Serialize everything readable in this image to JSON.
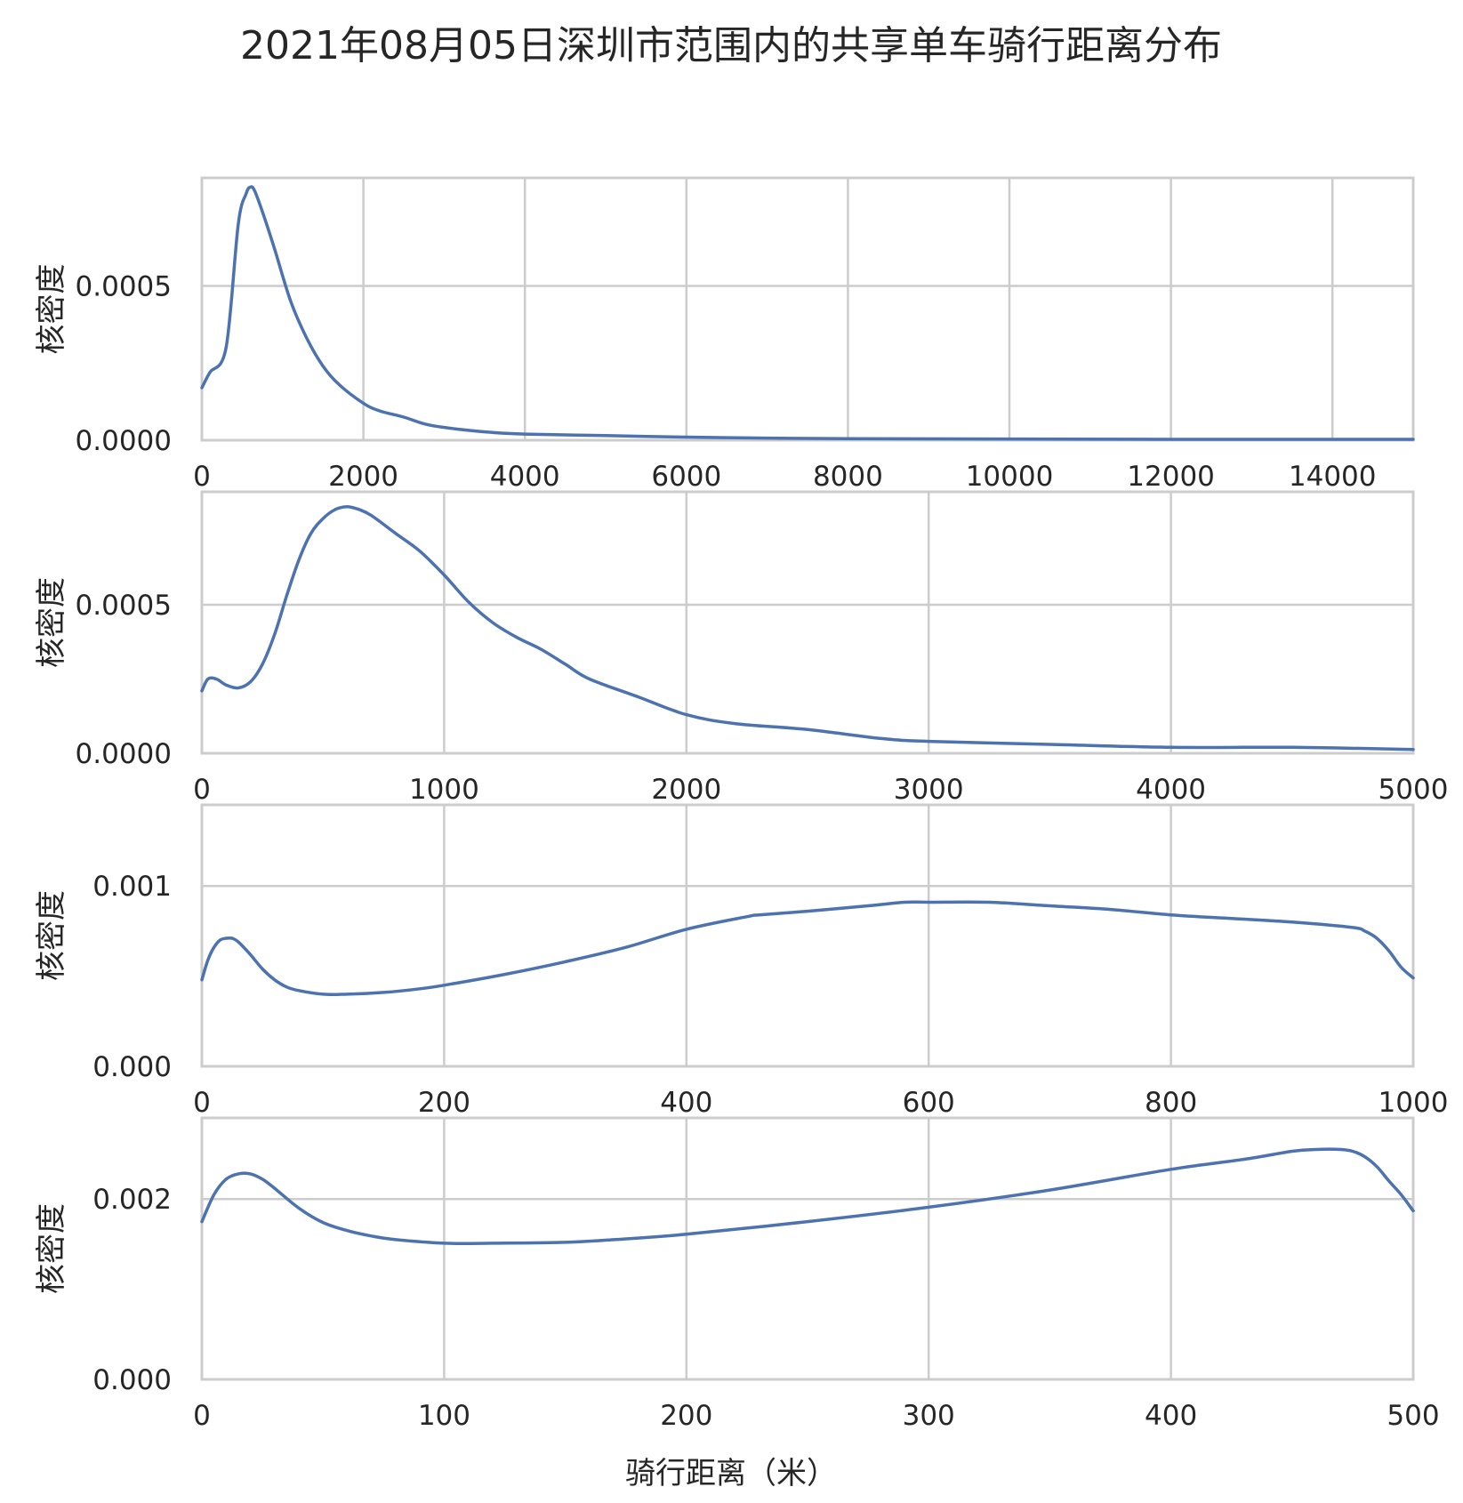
{
  "chart_data": {
    "title": "2021年08月05日深圳市范围内的共享单车骑行距离分布",
    "xlabel": "骑行距离（米）",
    "grid": true,
    "colors": {
      "line": "#4c72b0",
      "grid": "#cccccc",
      "text": "#262626"
    },
    "panels": [
      {
        "type": "line",
        "ylabel": "核密度",
        "xlim": [
          0,
          15000
        ],
        "ylim": [
          0,
          0.00085
        ],
        "xticks": [
          "0",
          "2000",
          "4000",
          "6000",
          "8000",
          "10000",
          "12000",
          "14000"
        ],
        "yticks": [
          "0.0000",
          "0.0005"
        ],
        "series": [
          {
            "x": [
              0,
              100,
              300,
              450,
              550,
              600,
              650,
              750,
              900,
              1100,
              1300,
              1500,
              1700,
              2000,
              2200,
              2500,
              2800,
              3200,
              3600,
              4000,
              5000,
              6000,
              7000,
              8000,
              10000,
              12000,
              15000
            ],
            "y": [
              0.00017,
              0.00022,
              0.0003,
              0.0007,
              0.0008,
              0.00082,
              0.00081,
              0.00074,
              0.00062,
              0.00045,
              0.00033,
              0.00024,
              0.00018,
              0.00012,
              9.5e-05,
              7.5e-05,
              5e-05,
              3.5e-05,
              2.5e-05,
              2e-05,
              1.5e-05,
              1e-05,
              7e-06,
              5e-06,
              4e-06,
              3e-06,
              3e-06
            ]
          }
        ]
      },
      {
        "type": "line",
        "ylabel": "核密度",
        "xlim": [
          0,
          5000
        ],
        "ylim": [
          0,
          0.00088
        ],
        "xticks": [
          "0",
          "1000",
          "2000",
          "3000",
          "4000",
          "5000"
        ],
        "yticks": [
          "0.0000",
          "0.0005"
        ],
        "series": [
          {
            "x": [
              0,
              25,
              60,
              100,
              150,
              200,
              250,
              300,
              350,
              400,
              450,
              500,
              550,
              600,
              650,
              700,
              800,
              900,
              1000,
              1100,
              1200,
              1300,
              1400,
              1500,
              1600,
              1800,
              2000,
              2200,
              2500,
              2800,
              3000,
              3500,
              4000,
              4500,
              5000
            ],
            "y": [
              0.00021,
              0.00025,
              0.00025,
              0.00023,
              0.00022,
              0.00024,
              0.0003,
              0.0004,
              0.00053,
              0.00065,
              0.00074,
              0.00079,
              0.00082,
              0.00083,
              0.00082,
              0.0008,
              0.00074,
              0.00068,
              0.0006,
              0.00051,
              0.00044,
              0.00039,
              0.00035,
              0.0003,
              0.00025,
              0.00019,
              0.00013,
              0.0001,
              8e-05,
              5e-05,
              4e-05,
              3e-05,
              2e-05,
              2e-05,
              1.3e-05
            ]
          }
        ]
      },
      {
        "type": "line",
        "ylabel": "核密度",
        "xlim": [
          0,
          1000
        ],
        "ylim": [
          0,
          0.00145
        ],
        "xticks": [
          "0",
          "200",
          "400",
          "600",
          "800",
          "1000"
        ],
        "yticks": [
          "0.000",
          "0.001"
        ],
        "series": [
          {
            "x": [
              0,
              5,
              10,
              15,
              20,
              25,
              30,
              40,
              50,
              60,
              70,
              80,
              100,
              120,
              150,
              180,
              200,
              250,
              300,
              350,
              400,
              450,
              460,
              500,
              550,
              580,
              600,
              650,
              700,
              750,
              800,
              850,
              900,
              950,
              960,
              970,
              980,
              990,
              1000
            ],
            "y": [
              0.00048,
              0.00059,
              0.00066,
              0.0007,
              0.00071,
              0.00071,
              0.00069,
              0.00062,
              0.00054,
              0.00048,
              0.00044,
              0.00042,
              0.0004,
              0.0004,
              0.00041,
              0.00043,
              0.00045,
              0.00051,
              0.00058,
              0.00066,
              0.00076,
              0.00083,
              0.00084,
              0.00086,
              0.00089,
              0.00091,
              0.00091,
              0.00091,
              0.00089,
              0.00087,
              0.00084,
              0.00082,
              0.0008,
              0.00077,
              0.00075,
              0.00071,
              0.00064,
              0.00055,
              0.00049
            ]
          }
        ]
      },
      {
        "type": "line",
        "ylabel": "核密度",
        "xlim": [
          0,
          500
        ],
        "ylim": [
          0,
          0.0029
        ],
        "xticks": [
          "0",
          "100",
          "200",
          "300",
          "400",
          "500"
        ],
        "yticks": [
          "0.000",
          "0.002"
        ],
        "series": [
          {
            "x": [
              0,
              5,
              10,
              15,
              20,
              25,
              30,
              40,
              50,
              60,
              70,
              80,
              100,
              120,
              150,
              170,
              200,
              250,
              300,
              350,
              400,
              430,
              450,
              460,
              470,
              475,
              480,
              485,
              490,
              495,
              500
            ],
            "y": [
              0.00175,
              0.00205,
              0.00222,
              0.00228,
              0.00228,
              0.00222,
              0.00212,
              0.0019,
              0.00174,
              0.00165,
              0.00159,
              0.00155,
              0.00151,
              0.00151,
              0.00152,
              0.00155,
              0.00161,
              0.00175,
              0.00191,
              0.0021,
              0.00233,
              0.00244,
              0.00253,
              0.00255,
              0.00255,
              0.00253,
              0.00247,
              0.00236,
              0.0022,
              0.00205,
              0.00187
            ]
          }
        ]
      }
    ]
  }
}
